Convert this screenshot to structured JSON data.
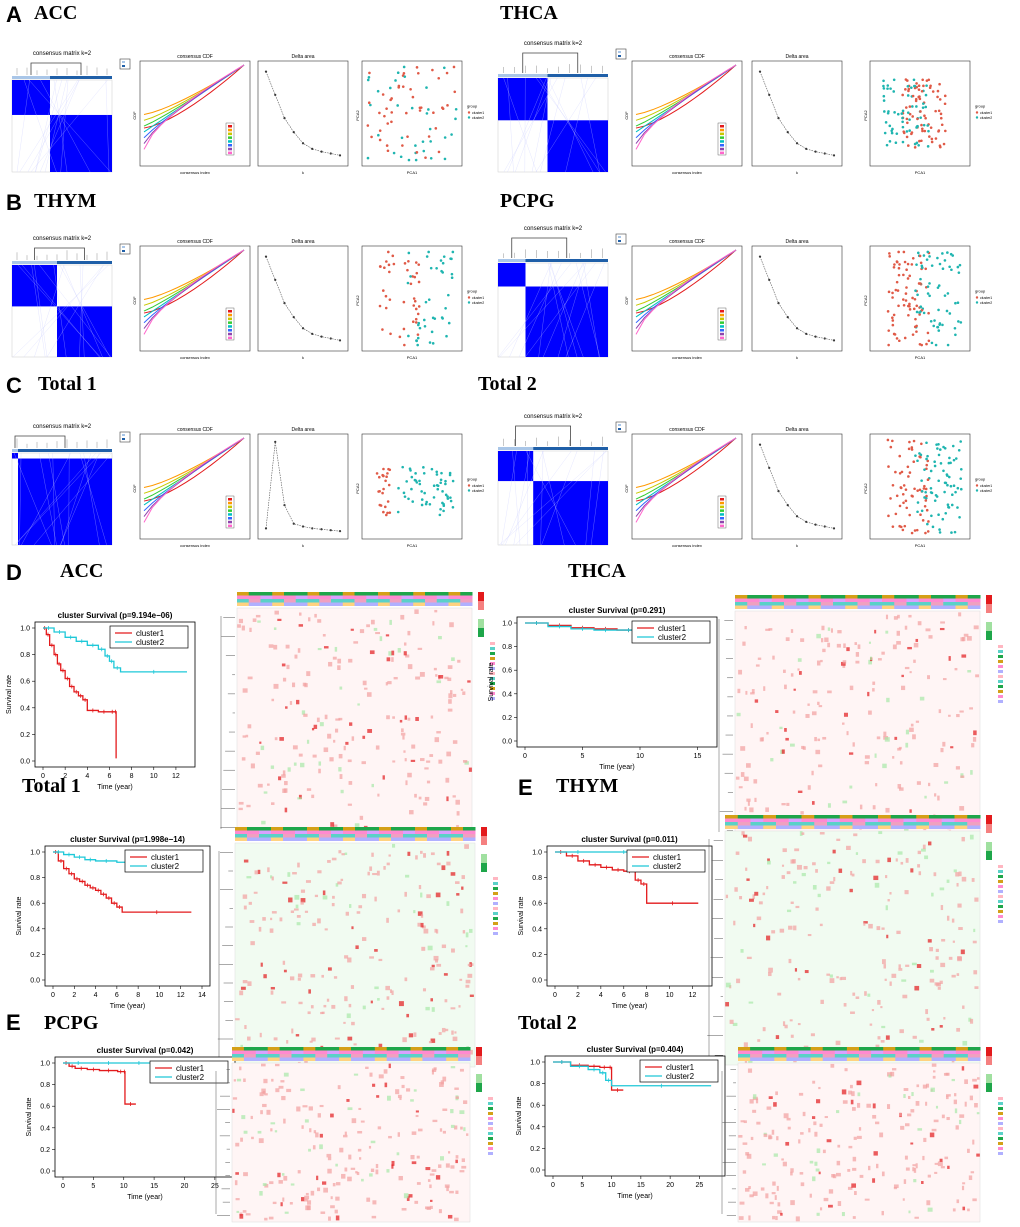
{
  "panels": {
    "A": {
      "letter": "A",
      "left_title": "ACC",
      "right_title": "THCA"
    },
    "B": {
      "letter": "B",
      "left_title": "THYM",
      "right_title": "PCPG"
    },
    "C": {
      "letter": "C",
      "left_title": "Total 1",
      "right_title": "Total 2"
    },
    "D": {
      "letter": "D",
      "left_title": "ACC",
      "right_title": "THCA"
    },
    "D2": {
      "left_title": "Total 1",
      "right_letter": "E",
      "right_title": "THYM"
    },
    "E": {
      "letter": "E",
      "left_title": "PCPG",
      "right_title": "Total 2"
    }
  },
  "consensus": {
    "matrix_title": "consensus matrix k=2",
    "cdf_title": "consensus CDF",
    "cdf_xlabel": "consensus index",
    "cdf_ylabel": "CDF",
    "delta_title": "Delta area",
    "delta_xlabel": "k",
    "pca_xlabel": "PCA1",
    "pca_ylabel": "PCA2",
    "legend_title": "group",
    "legend_items": [
      "cluster1",
      "cluster2"
    ],
    "colors": {
      "blue": "#0000ff",
      "red": "#e05a47",
      "teal": "#1fb5b0",
      "purple": "#8e44ad"
    }
  },
  "survival": {
    "xlabel": "Time (year)",
    "ylabel": "Survival rate",
    "legend": [
      "cluster1",
      "cluster2"
    ],
    "colors": {
      "cluster1": "#e31a1c",
      "cluster2": "#1ec8d8"
    }
  },
  "chart_data": [
    {
      "type": "line",
      "id": "acc",
      "title": "cluster Survival (p=9.194e−06)",
      "xlim": [
        0,
        13
      ],
      "xticks": [
        0,
        2,
        4,
        6,
        8,
        10,
        12
      ],
      "ylim": [
        0,
        1
      ],
      "yticks": [
        "0.0",
        "0.2",
        "0.4",
        "0.6",
        "0.8",
        "1.0"
      ],
      "series": [
        {
          "name": "cluster1",
          "x": [
            0,
            0.3,
            0.6,
            1,
            1.3,
            1.6,
            2,
            2.4,
            2.8,
            3.2,
            3.6,
            4,
            5,
            6,
            6.5,
            6.6
          ],
          "y": [
            1,
            0.95,
            0.87,
            0.8,
            0.73,
            0.68,
            0.62,
            0.56,
            0.52,
            0.49,
            0.46,
            0.38,
            0.37,
            0.37,
            0.37,
            0.02
          ]
        },
        {
          "name": "cluster2",
          "x": [
            0,
            1,
            2,
            3,
            4,
            5,
            5.6,
            6,
            6.4,
            7,
            13
          ],
          "y": [
            1,
            0.97,
            0.93,
            0.9,
            0.87,
            0.84,
            0.79,
            0.75,
            0.7,
            0.67,
            0.67
          ]
        }
      ]
    },
    {
      "type": "line",
      "id": "thca",
      "title": "cluster Survival (p=0.291)",
      "xlim": [
        0,
        16
      ],
      "xticks": [
        0,
        5,
        10,
        15
      ],
      "ylim": [
        0,
        1
      ],
      "yticks": [
        "0.0",
        "0.2",
        "0.4",
        "0.6",
        "0.8",
        "1.0"
      ],
      "series": [
        {
          "name": "cluster1",
          "x": [
            0,
            2,
            4,
            6,
            8,
            10,
            11.5
          ],
          "y": [
            1,
            0.98,
            0.96,
            0.95,
            0.94,
            0.92,
            0.92
          ]
        },
        {
          "name": "cluster2",
          "x": [
            0,
            2,
            4,
            6,
            8,
            10,
            12
          ],
          "y": [
            1,
            0.97,
            0.95,
            0.94,
            0.94,
            0.93,
            0.93
          ]
        }
      ]
    },
    {
      "type": "line",
      "id": "total1",
      "title": "cluster Survival (p=1.998e−14)",
      "xlim": [
        0,
        14
      ],
      "xticks": [
        0,
        2,
        4,
        6,
        8,
        10,
        12,
        14
      ],
      "ylim": [
        0,
        1
      ],
      "yticks": [
        "0.0",
        "0.2",
        "0.4",
        "0.6",
        "0.8",
        "1.0"
      ],
      "series": [
        {
          "name": "cluster1",
          "x": [
            0,
            0.5,
            1,
            1.5,
            2,
            2.5,
            3,
            3.5,
            4,
            4.5,
            5,
            5.5,
            6,
            6.5,
            13
          ],
          "y": [
            1,
            0.93,
            0.87,
            0.83,
            0.79,
            0.77,
            0.74,
            0.72,
            0.7,
            0.67,
            0.64,
            0.6,
            0.57,
            0.53,
            0.53
          ]
        },
        {
          "name": "cluster2",
          "x": [
            0,
            1,
            2,
            3,
            4,
            6,
            8,
            10,
            13
          ],
          "y": [
            1,
            0.98,
            0.96,
            0.94,
            0.93,
            0.92,
            0.91,
            0.9,
            0.9
          ]
        }
      ]
    },
    {
      "type": "line",
      "id": "thym",
      "title": "cluster Survival (p=0.011)",
      "xlim": [
        0,
        13
      ],
      "xticks": [
        0,
        2,
        4,
        6,
        8,
        10,
        12
      ],
      "ylim": [
        0,
        1
      ],
      "yticks": [
        "0.0",
        "0.2",
        "0.4",
        "0.6",
        "0.8",
        "1.0"
      ],
      "series": [
        {
          "name": "cluster1",
          "x": [
            0,
            1,
            2,
            3,
            4,
            5,
            6,
            7,
            7.5,
            8,
            12.5
          ],
          "y": [
            1,
            0.97,
            0.93,
            0.9,
            0.88,
            0.86,
            0.85,
            0.78,
            0.75,
            0.6,
            0.6
          ]
        },
        {
          "name": "cluster2",
          "x": [
            0,
            4,
            8,
            12.5
          ],
          "y": [
            1,
            1,
            1,
            1
          ]
        }
      ]
    },
    {
      "type": "line",
      "id": "pcpg",
      "title": "cluster Survival (p=0.042)",
      "xlim": [
        0,
        27
      ],
      "xticks": [
        0,
        5,
        10,
        15,
        20,
        25
      ],
      "ylim": [
        0,
        1
      ],
      "yticks": [
        "0.0",
        "0.2",
        "0.4",
        "0.6",
        "0.8",
        "1.0"
      ],
      "series": [
        {
          "name": "cluster1",
          "x": [
            0,
            1,
            2,
            4,
            6,
            9,
            10,
            10.2,
            12
          ],
          "y": [
            1,
            0.97,
            0.95,
            0.94,
            0.93,
            0.92,
            0.92,
            0.62,
            0.62
          ]
        },
        {
          "name": "cluster2",
          "x": [
            0,
            5,
            10,
            15,
            20,
            26
          ],
          "y": [
            1,
            1,
            1,
            1,
            1,
            1
          ]
        }
      ]
    },
    {
      "type": "line",
      "id": "total2",
      "title": "cluster Survival (p=0.404)",
      "xlim": [
        0,
        28
      ],
      "xticks": [
        0,
        5,
        10,
        15,
        20,
        25
      ],
      "ylim": [
        0,
        1
      ],
      "yticks": [
        "0.0",
        "0.2",
        "0.4",
        "0.6",
        "0.8",
        "1.0"
      ],
      "series": [
        {
          "name": "cluster1",
          "x": [
            0,
            3,
            6,
            8,
            9.5,
            10,
            12
          ],
          "y": [
            1,
            0.97,
            0.96,
            0.95,
            0.95,
            0.74,
            0.74
          ]
        },
        {
          "name": "cluster2",
          "x": [
            0,
            3,
            6,
            8,
            9,
            10,
            27
          ],
          "y": [
            1,
            0.96,
            0.93,
            0.9,
            0.83,
            0.78,
            0.78
          ]
        }
      ]
    }
  ]
}
